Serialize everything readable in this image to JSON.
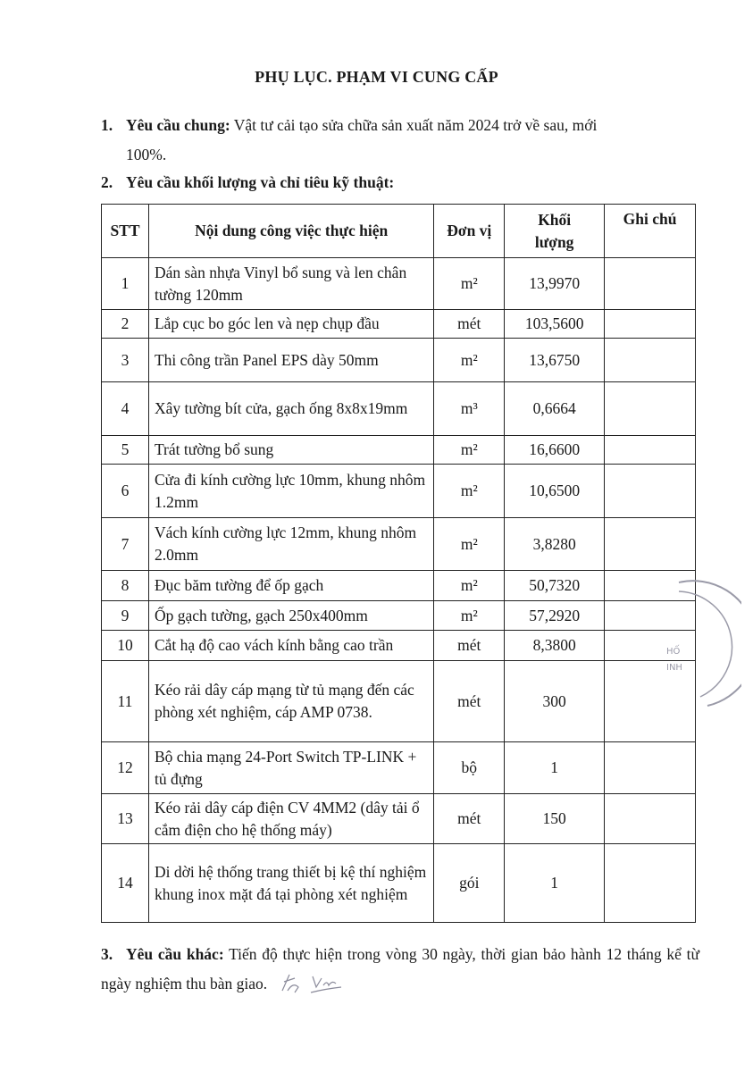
{
  "title": "PHỤ LỤC. PHẠM VI CUNG CẤP",
  "section1": {
    "number": "1.",
    "label": "Yêu cầu chung:",
    "text": " Vật tư cải tạo sửa chữa sản xuất năm 2024 trở về sau, mới",
    "text_cont": "100%."
  },
  "section2": {
    "number": "2.",
    "label": "Yêu cầu khối lượng và chỉ tiêu kỹ thuật:"
  },
  "table": {
    "headers": {
      "stt": "STT",
      "content": "Nội dung công việc thực hiện",
      "unit": "Đơn vị",
      "volume": "Khối lượng",
      "note": "Ghi chú"
    },
    "rows": [
      {
        "stt": "1",
        "content": "Dán sàn nhựa Vinyl bổ sung và len chân tường 120mm",
        "unit": "m²",
        "volume": "13,9970",
        "note": ""
      },
      {
        "stt": "2",
        "content": "Lắp cục bo góc len và nẹp chụp đầu",
        "unit": "mét",
        "volume": "103,5600",
        "note": ""
      },
      {
        "stt": "3",
        "content": "Thi công trần Panel EPS dày 50mm",
        "unit": "m²",
        "volume": "13,6750",
        "note": ""
      },
      {
        "stt": "4",
        "content": "Xây tường bít cửa, gạch ống 8x8x19mm",
        "unit": "m³",
        "volume": "0,6664",
        "note": ""
      },
      {
        "stt": "5",
        "content": "Trát tường bổ sung",
        "unit": "m²",
        "volume": "16,6600",
        "note": ""
      },
      {
        "stt": "6",
        "content": "Cửa đi kính cường lực 10mm, khung nhôm 1.2mm",
        "unit": "m²",
        "volume": "10,6500",
        "note": ""
      },
      {
        "stt": "7",
        "content": "Vách kính cường lực 12mm, khung nhôm 2.0mm",
        "unit": "m²",
        "volume": "3,8280",
        "note": ""
      },
      {
        "stt": "8",
        "content": "Đục băm tường để ốp gạch",
        "unit": "m²",
        "volume": "50,7320",
        "note": ""
      },
      {
        "stt": "9",
        "content": "Ốp gạch tường, gạch 250x400mm",
        "unit": "m²",
        "volume": "57,2920",
        "note": ""
      },
      {
        "stt": "10",
        "content": "Cắt hạ độ cao vách kính bằng cao trần",
        "unit": "mét",
        "volume": "8,3800",
        "note": ""
      },
      {
        "stt": "11",
        "content": "Kéo rải dây cáp mạng từ tủ mạng đến các phòng xét nghiệm, cáp AMP 0738.",
        "unit": "mét",
        "volume": "300",
        "note": ""
      },
      {
        "stt": "12",
        "content": "Bộ chia mạng 24-Port Switch TP-LINK + tủ đựng",
        "unit": "bộ",
        "volume": "1",
        "note": ""
      },
      {
        "stt": "13",
        "content": "Kéo rải dây cáp điện CV 4MM2 (dây tải ổ cắm điện cho hệ thống máy)",
        "unit": "mét",
        "volume": "150",
        "note": ""
      },
      {
        "stt": "14",
        "content": "Di dời hệ thống trang thiết bị kệ thí nghiệm khung inox mặt đá tại phòng xét nghiệm",
        "unit": "gói",
        "volume": "1",
        "note": ""
      }
    ]
  },
  "section3": {
    "number": "3.",
    "label": "Yêu cầu khác:",
    "text": " Tiến độ thực hiện trong vòng 30 ngày, thời gian bảo hành 12 tháng kể từ ngày nghiệm thu bàn giao."
  },
  "stamp_fragment": "HỐ INH"
}
